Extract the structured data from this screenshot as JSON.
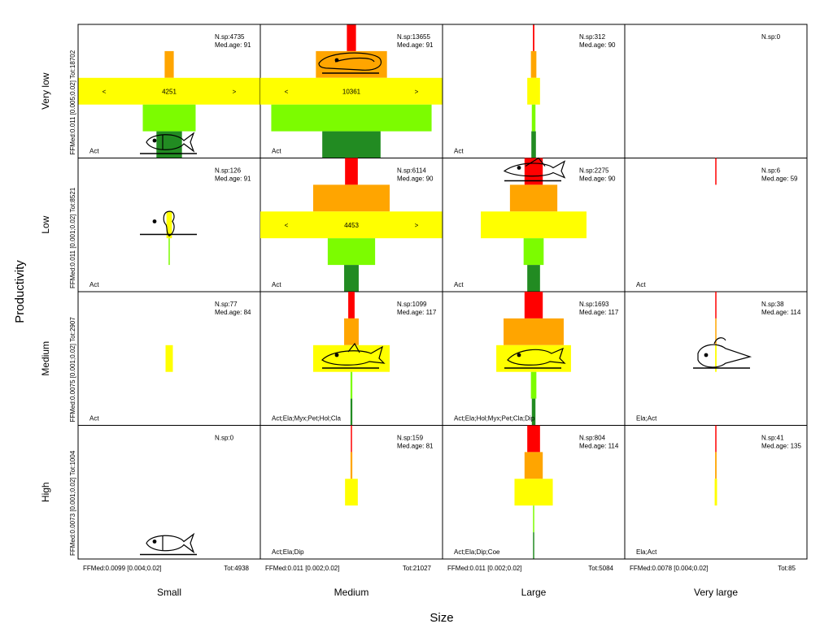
{
  "chart_data": {
    "type": "grid of centered horizontal bar profiles",
    "xlabel": "Size",
    "ylabel": "Productivity",
    "columns": [
      "Small",
      "Medium",
      "Large",
      "Very large"
    ],
    "rows": [
      "Very low",
      "Low",
      "Medium",
      "High"
    ],
    "band_colors": [
      "#ff0000",
      "#ffa500",
      "#ffff00",
      "#7cfc00",
      "#228b22"
    ],
    "row_margin_labels": [
      {
        "row": "Very low",
        "ffmed": "FFMed:0.011 [0.005;0.02]",
        "tot": "Tot:18702"
      },
      {
        "row": "Low",
        "ffmed": "FFMed:0.011 [0.001;0.02]",
        "tot": "Tot:8521"
      },
      {
        "row": "Medium",
        "ffmed": "FFMed:0.0075 [0.001;0.02]",
        "tot": "Tot:2907"
      },
      {
        "row": "High",
        "ffmed": "FFMed:0.0073 [0.001;0.02]",
        "tot": "Tot:1004"
      }
    ],
    "column_margin_labels": [
      {
        "column": "Small",
        "ffmed": "FFMed:0.0099 [0.004;0.02]",
        "tot": "Tot:4938"
      },
      {
        "column": "Medium",
        "ffmed": "FFMed:0.011 [0.002;0.02]",
        "tot": "Tot:21027"
      },
      {
        "column": "Large",
        "ffmed": "FFMed:0.011 [0.002;0.02]",
        "tot": "Tot:5084"
      },
      {
        "column": "Very large",
        "ffmed": "FFMed:0.0078 [0.004;0.02]",
        "tot": "Tot:85"
      }
    ],
    "cells": [
      {
        "row": 0,
        "col": 0,
        "nsp": "N.sp:4735",
        "medage": "Med.age: 91",
        "groups": "Act",
        "bands": [
          0,
          0.05,
          1,
          0.29,
          0.14
        ],
        "bands_text": "4251",
        "fish": "fusiform"
      },
      {
        "row": 0,
        "col": 1,
        "nsp": "N.sp:13655",
        "medage": "Med.age: 91",
        "groups": "Act",
        "bands": [
          0.05,
          0.39,
          1,
          0.88,
          0.32
        ],
        "bands_text": "10361",
        "fish": "eel"
      },
      {
        "row": 0,
        "col": 2,
        "nsp": "N.sp:312",
        "medage": "Med.age: 90",
        "groups": "Act",
        "bands": [
          0.008,
          0.03,
          0.07,
          0.02,
          0.025
        ],
        "bands_text": "",
        "fish": ""
      },
      {
        "row": 0,
        "col": 3,
        "nsp": "N.sp:0",
        "medage": "",
        "groups": "",
        "bands": [
          0,
          0,
          0,
          0,
          0
        ],
        "bands_text": "",
        "fish": ""
      },
      {
        "row": 1,
        "col": 0,
        "nsp": "N.sp:126",
        "medage": "Med.age: 91",
        "groups": "Act",
        "bands": [
          0,
          0,
          0.03,
          0.006,
          0
        ],
        "bands_text": "",
        "fish": "seahorse"
      },
      {
        "row": 1,
        "col": 1,
        "nsp": "N.sp:6114",
        "medage": "Med.age: 90",
        "groups": "Act",
        "bands": [
          0.07,
          0.42,
          1,
          0.26,
          0.08
        ],
        "bands_text": "4453",
        "fish": ""
      },
      {
        "row": 1,
        "col": 2,
        "nsp": "N.sp:2275",
        "medage": "Med.age: 90",
        "groups": "Act",
        "bands": [
          0.1,
          0.26,
          0.58,
          0.11,
          0.07
        ],
        "bands_text": "",
        "fish": "flatfish"
      },
      {
        "row": 1,
        "col": 3,
        "nsp": "N.sp:6",
        "medage": "Med.age: 59",
        "groups": "Act",
        "bands": [
          0.005,
          0,
          0,
          0,
          0
        ],
        "bands_text": "",
        "fish": ""
      },
      {
        "row": 2,
        "col": 0,
        "nsp": "N.sp:77",
        "medage": "Med.age: 84",
        "groups": "Act",
        "bands": [
          0,
          0,
          0.04,
          0,
          0
        ],
        "bands_text": "",
        "fish": ""
      },
      {
        "row": 2,
        "col": 1,
        "nsp": "N.sp:1099",
        "medage": "Med.age: 117",
        "groups": "Act;Ela;Myx;Pet;Hol;Cla",
        "bands": [
          0.035,
          0.08,
          0.42,
          0.01,
          0.01
        ],
        "bands_text": "",
        "fish": "shark"
      },
      {
        "row": 2,
        "col": 2,
        "nsp": "N.sp:1693",
        "medage": "Med.age: 117",
        "groups": "Act;Ela;Hol;Myx;Pet;Cla;Dip",
        "bands": [
          0.1,
          0.33,
          0.41,
          0.03,
          0.02
        ],
        "bands_text": "",
        "fish": "ray"
      },
      {
        "row": 2,
        "col": 3,
        "nsp": "N.sp:38",
        "medage": "Med.age: 114",
        "groups": "Ela;Act",
        "bands": [
          0.006,
          0.005,
          0.008,
          0,
          0
        ],
        "bands_text": "",
        "fish": "anglerfish"
      },
      {
        "row": 3,
        "col": 0,
        "nsp": "N.sp:0",
        "medage": "",
        "groups": "",
        "bands": [
          0,
          0,
          0,
          0,
          0
        ],
        "bands_text": "",
        "fish": "fusiform"
      },
      {
        "row": 3,
        "col": 1,
        "nsp": "N.sp:159",
        "medage": "Med.age: 81",
        "groups": "Act;Ela;Dip",
        "bands": [
          0.006,
          0.01,
          0.07,
          0,
          0
        ],
        "bands_text": "",
        "fish": ""
      },
      {
        "row": 3,
        "col": 2,
        "nsp": "N.sp:804",
        "medage": "Med.age: 114",
        "groups": "Act;Ela;Dip;Coe",
        "bands": [
          0.07,
          0.1,
          0.21,
          0.005,
          0.005
        ],
        "bands_text": "",
        "fish": ""
      },
      {
        "row": 3,
        "col": 3,
        "nsp": "N.sp:41",
        "medage": "Med.age: 135",
        "groups": "Ela;Act",
        "bands": [
          0.006,
          0.008,
          0.013,
          0,
          0
        ],
        "bands_text": "",
        "fish": ""
      }
    ]
  }
}
